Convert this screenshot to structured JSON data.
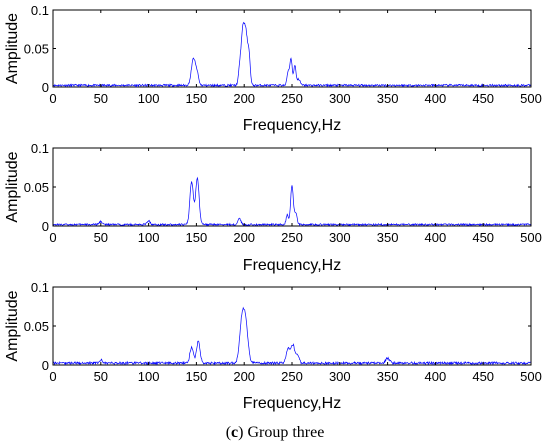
{
  "caption": {
    "label": "c",
    "text": "Group three"
  },
  "colors": {
    "series": "#0000ff",
    "axis": "#000000",
    "background": "#ffffff"
  },
  "chart_data": [
    {
      "type": "line",
      "title": "",
      "xlabel": "Frequency,Hz",
      "ylabel": "Amplitude",
      "xlim": [
        0,
        500
      ],
      "ylim": [
        0,
        0.1
      ],
      "xticks": [
        "0",
        "50",
        "100",
        "150",
        "200",
        "250",
        "300",
        "350",
        "400",
        "450",
        "500"
      ],
      "yticks": [
        "0",
        "0.05",
        "0.1"
      ],
      "grid": false,
      "noise_floor": 0.0035,
      "peaks": [
        {
          "f": 147,
          "a": 0.035,
          "w": 2.2
        },
        {
          "f": 151,
          "a": 0.012,
          "w": 1.5
        },
        {
          "f": 196,
          "a": 0.03,
          "w": 1.6
        },
        {
          "f": 199,
          "a": 0.068,
          "w": 1.6
        },
        {
          "f": 202,
          "a": 0.058,
          "w": 1.5
        },
        {
          "f": 205,
          "a": 0.04,
          "w": 1.3
        },
        {
          "f": 246,
          "a": 0.018,
          "w": 1.2
        },
        {
          "f": 249,
          "a": 0.035,
          "w": 1.2
        },
        {
          "f": 253,
          "a": 0.026,
          "w": 1.2
        },
        {
          "f": 257,
          "a": 0.008,
          "w": 1.5
        }
      ]
    },
    {
      "type": "line",
      "title": "",
      "xlabel": "Frequency,Hz",
      "ylabel": "Amplitude",
      "xlim": [
        0,
        500
      ],
      "ylim": [
        0,
        0.1
      ],
      "xticks": [
        "0",
        "50",
        "100",
        "150",
        "200",
        "250",
        "300",
        "350",
        "400",
        "450",
        "500"
      ],
      "yticks": [
        "0",
        "0.05",
        "0.1"
      ],
      "grid": false,
      "noise_floor": 0.003,
      "peaks": [
        {
          "f": 50,
          "a": 0.004,
          "w": 1.5
        },
        {
          "f": 100,
          "a": 0.005,
          "w": 1.5
        },
        {
          "f": 145,
          "a": 0.055,
          "w": 1.8
        },
        {
          "f": 151,
          "a": 0.06,
          "w": 1.8
        },
        {
          "f": 195,
          "a": 0.008,
          "w": 1.5
        },
        {
          "f": 245,
          "a": 0.012,
          "w": 1.2
        },
        {
          "f": 250,
          "a": 0.05,
          "w": 1.4
        },
        {
          "f": 254,
          "a": 0.015,
          "w": 1.3
        }
      ]
    },
    {
      "type": "line",
      "title": "",
      "xlabel": "Frequency,Hz",
      "ylabel": "Amplitude",
      "xlim": [
        0,
        500
      ],
      "ylim": [
        0,
        0.1
      ],
      "xticks": [
        "0",
        "50",
        "100",
        "150",
        "200",
        "250",
        "300",
        "350",
        "400",
        "450",
        "500"
      ],
      "yticks": [
        "0",
        "0.05",
        "0.1"
      ],
      "grid": false,
      "noise_floor": 0.004,
      "peaks": [
        {
          "f": 50,
          "a": 0.004,
          "w": 1.5
        },
        {
          "f": 145,
          "a": 0.02,
          "w": 1.8
        },
        {
          "f": 152,
          "a": 0.028,
          "w": 1.8
        },
        {
          "f": 197,
          "a": 0.04,
          "w": 2.2
        },
        {
          "f": 201,
          "a": 0.058,
          "w": 2.6
        },
        {
          "f": 246,
          "a": 0.018,
          "w": 2.0
        },
        {
          "f": 251,
          "a": 0.023,
          "w": 2.0
        },
        {
          "f": 256,
          "a": 0.01,
          "w": 1.5
        },
        {
          "f": 350,
          "a": 0.006,
          "w": 2.0
        }
      ]
    }
  ]
}
